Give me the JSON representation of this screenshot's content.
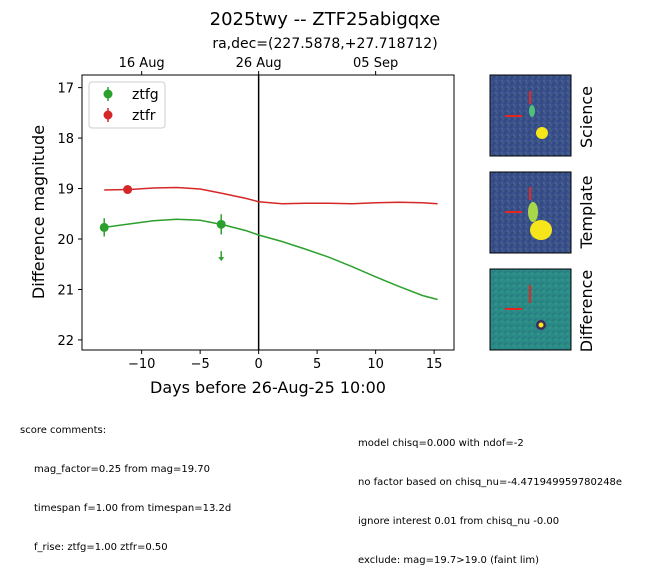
{
  "chart_data": {
    "type": "scatter",
    "title": "2025twy -- ZTF25abigqxe",
    "subtitle": "ra,dec=(227.5878,+27.718712)",
    "xlabel": "Days before 26-Aug-25 10:00",
    "ylabel": "Difference magnitude",
    "xlim": [
      -15.1,
      16.7
    ],
    "ylim": [
      22.2,
      16.75
    ],
    "y_inverted": true,
    "xticks": [
      -10,
      -5,
      0,
      5,
      10,
      15
    ],
    "yticks": [
      17,
      18,
      19,
      20,
      21,
      22
    ],
    "top_axis_ticks": [
      {
        "value": -10,
        "label": "16 Aug"
      },
      {
        "value": 0,
        "label": "26 Aug"
      },
      {
        "value": 10,
        "label": "05 Sep"
      }
    ],
    "vertical_line_x": 0,
    "legend_position": "upper-left",
    "series": [
      {
        "name": "ztfg",
        "color": "#2ca02c",
        "points": [
          {
            "x": -13.2,
            "y": 19.77,
            "err": 0.18
          },
          {
            "x": -3.2,
            "y": 19.71,
            "err": 0.2
          }
        ],
        "upper_limits": [
          {
            "x": -3.2,
            "y": 20.3
          }
        ],
        "model_curve": [
          [
            -13.2,
            19.77
          ],
          [
            -11,
            19.7
          ],
          [
            -9,
            19.64
          ],
          [
            -7,
            19.61
          ],
          [
            -5,
            19.63
          ],
          [
            -3,
            19.72
          ],
          [
            -1,
            19.84
          ],
          [
            0,
            19.92
          ],
          [
            2,
            20.05
          ],
          [
            4,
            20.2
          ],
          [
            6,
            20.36
          ],
          [
            8,
            20.55
          ],
          [
            10,
            20.75
          ],
          [
            12,
            20.94
          ],
          [
            14,
            21.12
          ],
          [
            15.3,
            21.2
          ]
        ]
      },
      {
        "name": "ztfr",
        "color": "#d62728",
        "points": [
          {
            "x": -11.2,
            "y": 19.02,
            "err": 0.04
          }
        ],
        "upper_limits": [],
        "model_curve": [
          [
            -13.2,
            19.03
          ],
          [
            -11,
            19.02
          ],
          [
            -9,
            18.99
          ],
          [
            -7,
            18.98
          ],
          [
            -5,
            19.01
          ],
          [
            -3,
            19.1
          ],
          [
            -1,
            19.2
          ],
          [
            0,
            19.26
          ],
          [
            2,
            19.3
          ],
          [
            4,
            19.29
          ],
          [
            6,
            19.29
          ],
          [
            8,
            19.3
          ],
          [
            10,
            19.28
          ],
          [
            12,
            19.27
          ],
          [
            14,
            19.28
          ],
          [
            15.3,
            19.3
          ]
        ]
      }
    ]
  },
  "stamps": [
    {
      "label": "Science"
    },
    {
      "label": "Template"
    },
    {
      "label": "Difference"
    }
  ],
  "colors": {
    "green": "#2ca02c",
    "red": "#d62728",
    "stamp_bg": "#3b4f8a",
    "stamp_diff_bg": "#2a8a86",
    "source_yellow": "#f5e51b"
  },
  "comments": {
    "header": "score comments:",
    "left_lines": [
      "mag_factor=0.25 from mag=19.70",
      "timespan f=1.00 from timespan=13.2d",
      "f_rise: ztfg=1.00 ztfr=0.50"
    ],
    "right_lines": [
      "model chisq=0.000 with ndof=-2",
      "no factor based on chisq_nu=-4.471949959780248e",
      "ignore interest 0.01 from chisq_nu -0.00",
      "exclude: mag=19.7>19.0 (faint lim)"
    ]
  }
}
